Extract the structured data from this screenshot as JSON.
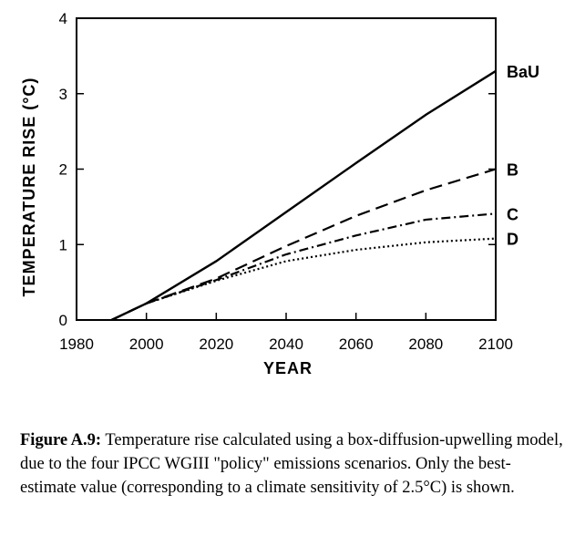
{
  "chart_data": {
    "type": "line",
    "xlabel": "YEAR",
    "ylabel": "TEMPERATURE RISE (°C)",
    "xlim": [
      1980,
      2100
    ],
    "ylim": [
      0,
      4
    ],
    "x_ticks": [
      1980,
      2000,
      2020,
      2040,
      2060,
      2080,
      2100
    ],
    "y_ticks": [
      0,
      1,
      2,
      3,
      4
    ],
    "grid": false,
    "series": [
      {
        "name": "BaU",
        "style": "solid",
        "x": [
          1990,
          2000,
          2020,
          2040,
          2060,
          2080,
          2100
        ],
        "y": [
          0,
          0.22,
          0.78,
          1.43,
          2.08,
          2.72,
          3.3
        ]
      },
      {
        "name": "B",
        "style": "dashed",
        "x": [
          1990,
          2000,
          2020,
          2040,
          2060,
          2080,
          2100
        ],
        "y": [
          0,
          0.22,
          0.55,
          0.98,
          1.38,
          1.72,
          2.0
        ]
      },
      {
        "name": "C",
        "style": "dashdot",
        "x": [
          1990,
          2000,
          2020,
          2040,
          2060,
          2080,
          2100
        ],
        "y": [
          0,
          0.22,
          0.53,
          0.87,
          1.12,
          1.33,
          1.41
        ]
      },
      {
        "name": "D",
        "style": "dotted",
        "x": [
          1990,
          2000,
          2020,
          2040,
          2060,
          2080,
          2100
        ],
        "y": [
          0,
          0.22,
          0.52,
          0.78,
          0.93,
          1.03,
          1.08
        ]
      }
    ]
  },
  "caption": {
    "label": "Figure A.9:",
    "text": " Temperature rise calculated using a box-diffusion-upwelling model, due to the four IPCC WGIII \"policy\" emissions scenarios.  Only the best-estimate value (corresponding to a climate sensitivity of 2.5°C) is shown."
  }
}
